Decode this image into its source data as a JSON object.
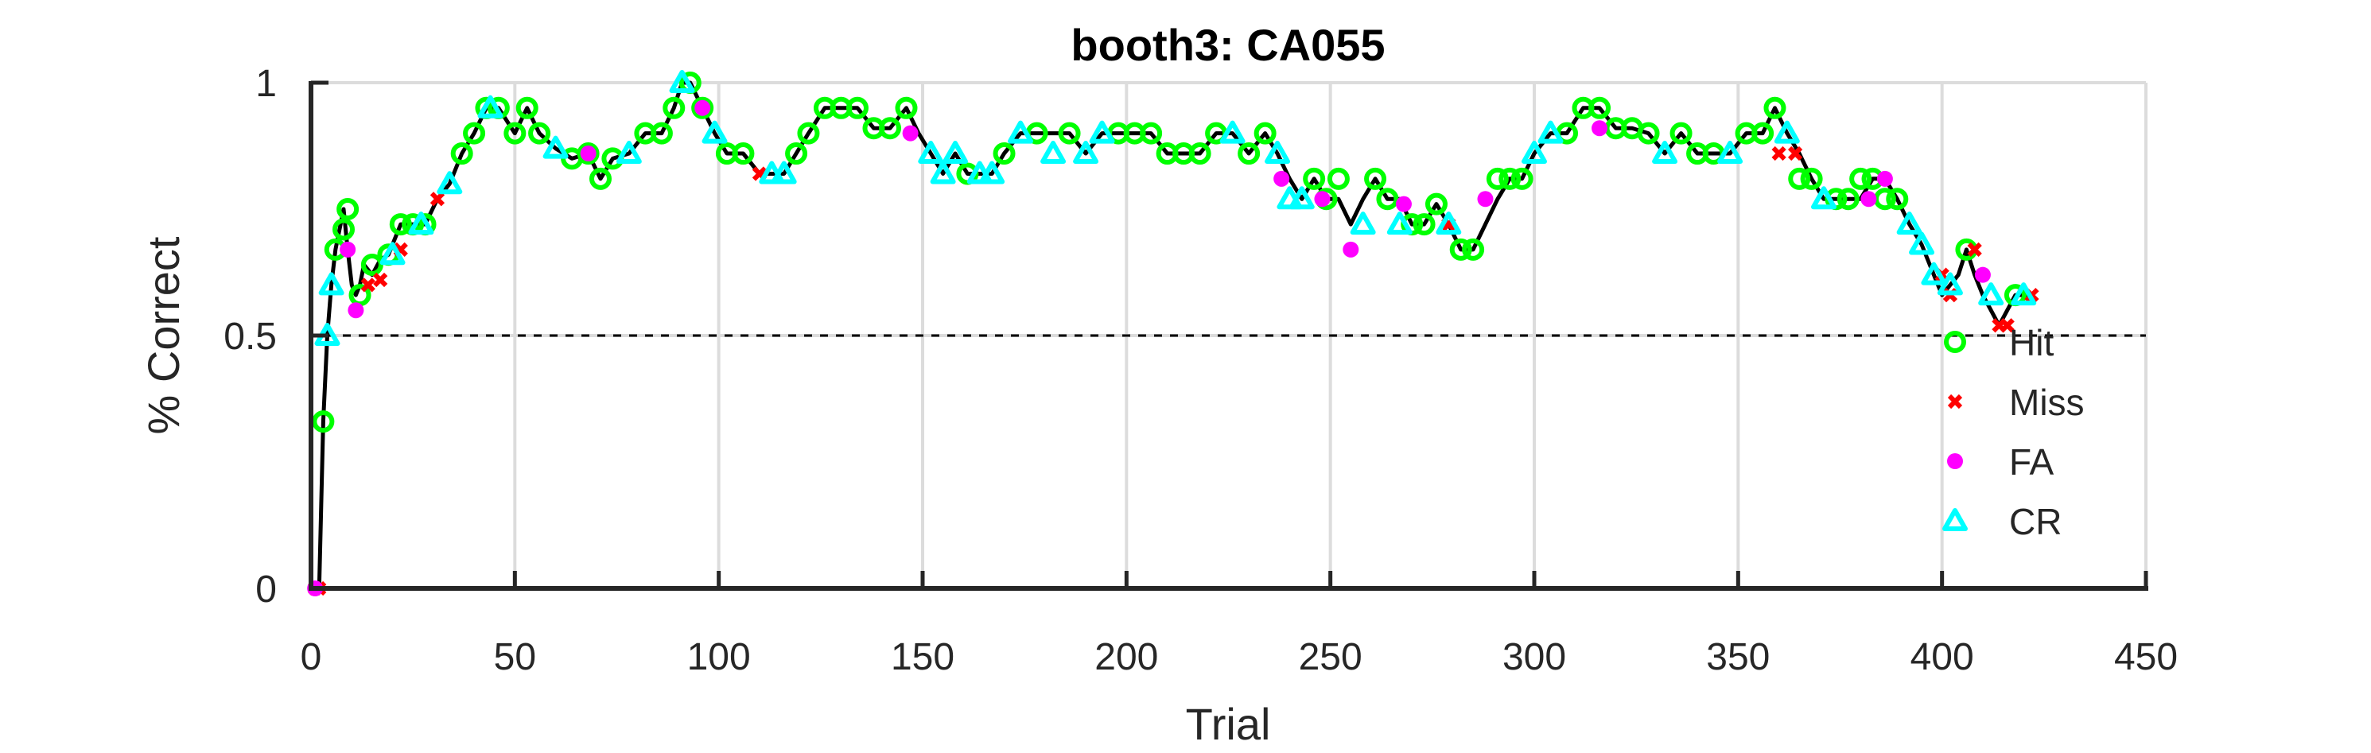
{
  "chart_data": {
    "type": "line",
    "title": "booth3: CA055",
    "xlabel": "Trial",
    "ylabel": "% Correct",
    "xlim": [
      0,
      450
    ],
    "ylim": [
      0,
      1
    ],
    "xticks": [
      0,
      50,
      100,
      150,
      200,
      250,
      300,
      350,
      400,
      450
    ],
    "yticks": [
      0,
      0.5,
      1
    ],
    "ytick_labels": [
      "0",
      "0.5",
      "1"
    ],
    "grid": true,
    "legend_position": "right",
    "chance_level": 0.5,
    "line_color": "#000000",
    "reference_line_style": "dashed",
    "line_series": {
      "x": [
        1,
        2,
        3,
        4,
        5,
        6,
        7,
        8,
        9,
        10,
        11,
        12,
        13,
        15,
        17,
        19,
        22,
        25,
        28,
        31,
        34,
        37,
        40,
        43,
        46,
        50,
        53,
        56,
        60,
        64,
        68,
        71,
        74,
        78,
        82,
        86,
        89,
        91,
        93,
        96,
        99,
        102,
        106,
        110,
        113,
        116,
        119,
        122,
        126,
        130,
        134,
        138,
        142,
        146,
        149,
        152,
        155,
        158,
        161,
        164,
        167,
        170,
        174,
        178,
        182,
        186,
        190,
        194,
        198,
        202,
        206,
        210,
        214,
        218,
        222,
        226,
        230,
        234,
        237,
        240,
        243,
        246,
        249,
        252,
        255,
        258,
        261,
        264,
        267,
        270,
        273,
        276,
        279,
        282,
        285,
        288,
        291,
        294,
        297,
        300,
        304,
        308,
        312,
        316,
        320,
        324,
        328,
        332,
        336,
        340,
        344,
        348,
        352,
        356,
        359,
        362,
        365,
        368,
        371,
        374,
        377,
        380,
        383,
        386,
        389,
        392,
        395,
        398,
        400,
        402,
        404,
        406,
        408,
        410,
        412,
        414,
        416,
        418,
        420,
        422
      ],
      "y": [
        0,
        0,
        0.33,
        0.5,
        0.6,
        0.67,
        0.71,
        0.75,
        0.67,
        0.6,
        0.58,
        0.6,
        0.64,
        0.62,
        0.65,
        0.66,
        0.72,
        0.72,
        0.72,
        0.77,
        0.8,
        0.86,
        0.9,
        0.95,
        0.95,
        0.9,
        0.95,
        0.9,
        0.87,
        0.85,
        0.86,
        0.81,
        0.85,
        0.86,
        0.9,
        0.9,
        0.95,
        1,
        1,
        0.95,
        0.9,
        0.86,
        0.86,
        0.82,
        0.82,
        0.82,
        0.86,
        0.9,
        0.95,
        0.95,
        0.95,
        0.91,
        0.91,
        0.95,
        0.9,
        0.86,
        0.82,
        0.86,
        0.82,
        0.82,
        0.82,
        0.86,
        0.9,
        0.9,
        0.9,
        0.9,
        0.86,
        0.9,
        0.9,
        0.9,
        0.9,
        0.86,
        0.86,
        0.86,
        0.9,
        0.9,
        0.86,
        0.9,
        0.86,
        0.81,
        0.77,
        0.81,
        0.77,
        0.77,
        0.72,
        0.77,
        0.81,
        0.77,
        0.77,
        0.72,
        0.72,
        0.76,
        0.72,
        0.67,
        0.67,
        0.72,
        0.77,
        0.81,
        0.81,
        0.86,
        0.9,
        0.9,
        0.95,
        0.95,
        0.91,
        0.91,
        0.9,
        0.86,
        0.9,
        0.86,
        0.86,
        0.86,
        0.9,
        0.9,
        0.95,
        0.9,
        0.86,
        0.81,
        0.77,
        0.77,
        0.77,
        0.77,
        0.81,
        0.81,
        0.77,
        0.72,
        0.68,
        0.62,
        0.58,
        0.6,
        0.62,
        0.67,
        0.62,
        0.58,
        0.55,
        0.52,
        0.55,
        0.58,
        0.58,
        0.58
      ]
    },
    "series": [
      {
        "name": "Hit",
        "color": "#00ff00",
        "marker": "circle",
        "x": [
          3,
          6,
          8,
          9,
          12,
          15,
          19,
          22,
          25,
          28,
          37,
          40,
          43,
          46,
          50,
          53,
          56,
          64,
          68,
          71,
          74,
          82,
          86,
          89,
          93,
          96,
          102,
          106,
          119,
          122,
          126,
          130,
          134,
          138,
          142,
          146,
          161,
          170,
          178,
          186,
          198,
          202,
          206,
          210,
          214,
          218,
          222,
          230,
          234,
          246,
          249,
          252,
          261,
          264,
          270,
          273,
          276,
          282,
          285,
          291,
          294,
          297,
          308,
          312,
          316,
          320,
          324,
          328,
          336,
          340,
          344,
          352,
          356,
          359,
          365,
          368,
          374,
          377,
          380,
          383,
          386,
          389,
          406,
          418
        ],
        "y": [
          0.33,
          0.67,
          0.71,
          0.75,
          0.58,
          0.64,
          0.66,
          0.72,
          0.72,
          0.72,
          0.86,
          0.9,
          0.95,
          0.95,
          0.9,
          0.95,
          0.9,
          0.85,
          0.86,
          0.81,
          0.85,
          0.9,
          0.9,
          0.95,
          1,
          0.95,
          0.86,
          0.86,
          0.86,
          0.9,
          0.95,
          0.95,
          0.95,
          0.91,
          0.91,
          0.95,
          0.82,
          0.86,
          0.9,
          0.9,
          0.9,
          0.9,
          0.9,
          0.86,
          0.86,
          0.86,
          0.9,
          0.86,
          0.9,
          0.81,
          0.77,
          0.81,
          0.81,
          0.77,
          0.72,
          0.72,
          0.76,
          0.67,
          0.67,
          0.81,
          0.81,
          0.81,
          0.9,
          0.95,
          0.95,
          0.91,
          0.91,
          0.9,
          0.9,
          0.86,
          0.86,
          0.9,
          0.9,
          0.95,
          0.81,
          0.81,
          0.77,
          0.77,
          0.81,
          0.81,
          0.77,
          0.77,
          0.67,
          0.58
        ]
      },
      {
        "name": "Miss",
        "color": "#ff0000",
        "marker": "x",
        "x": [
          1,
          2,
          14,
          17,
          22,
          31,
          110,
          279,
          360,
          364,
          400,
          402,
          408,
          414,
          416,
          422
        ],
        "y": [
          0,
          0,
          0.6,
          0.61,
          0.67,
          0.77,
          0.82,
          0.72,
          0.86,
          0.86,
          0.62,
          0.58,
          0.67,
          0.52,
          0.52,
          0.58
        ]
      },
      {
        "name": "FA",
        "color": "#ff00ff",
        "marker": "dot",
        "x": [
          1,
          9,
          11,
          68,
          96,
          147,
          238,
          248,
          255,
          268,
          288,
          316,
          382,
          386,
          410
        ],
        "y": [
          0,
          0.67,
          0.55,
          0.86,
          0.95,
          0.9,
          0.81,
          0.77,
          0.67,
          0.76,
          0.77,
          0.91,
          0.77,
          0.81,
          0.62
        ]
      },
      {
        "name": "CR",
        "color": "#00ffff",
        "marker": "triangle",
        "x": [
          4,
          5,
          20,
          27,
          34,
          44,
          60,
          78,
          91,
          99,
          113,
          116,
          152,
          155,
          158,
          164,
          167,
          174,
          182,
          190,
          194,
          226,
          237,
          240,
          243,
          258,
          267,
          279,
          300,
          304,
          332,
          348,
          362,
          371,
          392,
          395,
          398,
          402,
          412,
          420
        ],
        "y": [
          0.5,
          0.6,
          0.66,
          0.72,
          0.8,
          0.95,
          0.87,
          0.86,
          1,
          0.9,
          0.82,
          0.82,
          0.86,
          0.82,
          0.86,
          0.82,
          0.82,
          0.9,
          0.86,
          0.86,
          0.9,
          0.9,
          0.86,
          0.77,
          0.77,
          0.72,
          0.72,
          0.72,
          0.86,
          0.9,
          0.86,
          0.86,
          0.9,
          0.77,
          0.72,
          0.68,
          0.62,
          0.6,
          0.58,
          0.58
        ]
      }
    ]
  }
}
